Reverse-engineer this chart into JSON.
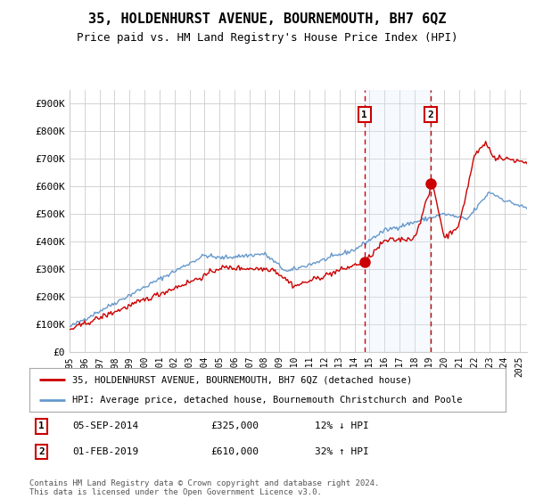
{
  "title": "35, HOLDENHURST AVENUE, BOURNEMOUTH, BH7 6QZ",
  "subtitle": "Price paid vs. HM Land Registry's House Price Index (HPI)",
  "legend_line1": "35, HOLDENHURST AVENUE, BOURNEMOUTH, BH7 6QZ (detached house)",
  "legend_line2": "HPI: Average price, detached house, Bournemouth Christchurch and Poole",
  "annotation1_date": "05-SEP-2014",
  "annotation1_price": "£325,000",
  "annotation1_hpi": "12% ↓ HPI",
  "annotation2_date": "01-FEB-2019",
  "annotation2_price": "£610,000",
  "annotation2_hpi": "32% ↑ HPI",
  "footer": "Contains HM Land Registry data © Crown copyright and database right 2024.\nThis data is licensed under the Open Government Licence v3.0.",
  "hpi_color": "#6699cc",
  "price_color": "#cc0000",
  "marker_color": "#cc0000",
  "vline_color": "#cc0000",
  "shade_color": "#ddeeff",
  "annotation_box_color": "#cc0000",
  "ylim": [
    0,
    950000
  ],
  "yticks": [
    0,
    100000,
    200000,
    300000,
    400000,
    500000,
    600000,
    700000,
    800000,
    900000
  ],
  "ytick_labels": [
    "£0",
    "£100K",
    "£200K",
    "£300K",
    "£400K",
    "£500K",
    "£600K",
    "£700K",
    "£800K",
    "£900K"
  ],
  "sale1_year": 2014.67,
  "sale1_value": 325000,
  "sale2_year": 2019.08,
  "sale2_value": 610000,
  "xmin": 1995.0,
  "xmax": 2025.5,
  "background_color": "#ffffff",
  "grid_color": "#cccccc"
}
